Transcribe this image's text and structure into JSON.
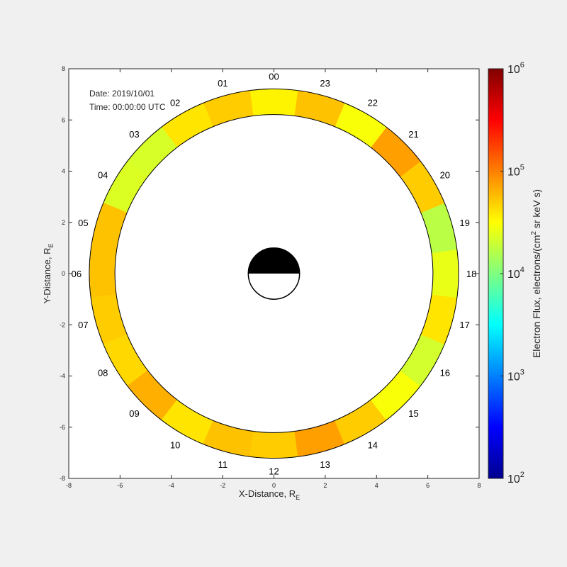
{
  "chart_data": {
    "type": "heatmap",
    "annotation": {
      "date": "Date: 2019/10/01",
      "time": "Time: 00:00:00 UTC"
    },
    "xlabel": "X-Distance, R",
    "xlabel_sub": "E",
    "ylabel": "Y-Distance, R",
    "ylabel_sub": "E",
    "xlim": [
      -8,
      8
    ],
    "ylim": [
      -8,
      8
    ],
    "x_ticks": [
      "-8",
      "-6",
      "-4",
      "-2",
      "0",
      "2",
      "4",
      "6",
      "8"
    ],
    "y_ticks": [
      "-8",
      "-6",
      "-4",
      "-2",
      "0",
      "2",
      "4",
      "6",
      "8"
    ],
    "ring_inner_radius": 6.2,
    "ring_outer_radius": 7.2,
    "earth_radius": 1,
    "mlt_labels": [
      "00",
      "01",
      "02",
      "03",
      "04",
      "05",
      "06",
      "07",
      "08",
      "09",
      "10",
      "11",
      "12",
      "13",
      "14",
      "15",
      "16",
      "17",
      "18",
      "19",
      "20",
      "21",
      "22",
      "23"
    ],
    "mlt_flux": [
      35000.0,
      50000.0,
      40000.0,
      22000.0,
      23000.0,
      55000.0,
      55000.0,
      50000.0,
      45000.0,
      65000.0,
      40000.0,
      55000.0,
      50000.0,
      75000.0,
      50000.0,
      30000.0,
      21000.0,
      40000.0,
      26000.0,
      17000.0,
      50000.0,
      75000.0,
      30000.0,
      55000.0
    ],
    "colorbar": {
      "label": "Electron Flux, electrons/(cm",
      "label_sup": "2",
      "label_end": " sr keV s)",
      "scale": "log",
      "range": [
        100,
        1000000
      ],
      "colormap": "jet",
      "tick_bases": [
        "10",
        "10",
        "10",
        "10",
        "10"
      ],
      "tick_exps": [
        "2",
        "3",
        "4",
        "5",
        "6"
      ]
    },
    "grid": false,
    "legend": "none"
  }
}
